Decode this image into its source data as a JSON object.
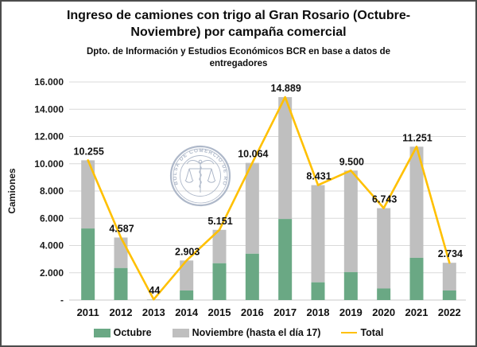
{
  "title": {
    "line1": "Ingreso de camiones con trigo al Gran Rosario (Octubre-",
    "line2": "Noviembre) por campaña comercial"
  },
  "subtitle": {
    "line1": "Dpto. de Información y Estudios Económicos BCR en base a datos de",
    "line2": "entregadores"
  },
  "watermark": {
    "text": "BOLSA DE COMERCIO DE ROSARIO",
    "color": "#a6b1c4"
  },
  "chart_data": {
    "type": "bar",
    "subtype": "stacked-bars-with-total-line",
    "title": "Ingreso de camiones con trigo al Gran Rosario (Octubre-Noviembre) por campaña comercial",
    "subtitle": "Dpto. de Información y Estudios Económicos BCR en base a datos de entregadores",
    "ylabel": "Camiones",
    "xlabel": "",
    "categories": [
      "2011",
      "2012",
      "2013",
      "2014",
      "2015",
      "2016",
      "2017",
      "2018",
      "2019",
      "2020",
      "2021",
      "2022"
    ],
    "series": [
      {
        "name": "Octubre",
        "color": "#6aa884",
        "values": [
          5250,
          2350,
          10,
          700,
          2700,
          3400,
          5950,
          1300,
          2050,
          850,
          3100,
          700
        ]
      },
      {
        "name": "Noviembre (hasta el día 17)",
        "color": "#bfbfbf",
        "values": [
          5005,
          2237,
          34,
          2203,
          2451,
          6664,
          8939,
          7131,
          7450,
          5893,
          8151,
          2034
        ]
      }
    ],
    "line": {
      "name": "Total",
      "color": "#ffc000",
      "values": [
        10255,
        4587,
        44,
        2903,
        5151,
        10064,
        14889,
        8431,
        9500,
        6743,
        11251,
        2734
      ]
    },
    "total_labels": [
      "10.255",
      "4.587",
      "44",
      "2.903",
      "5.151",
      "10.064",
      "14.889",
      "8.431",
      "9.500",
      "6.743",
      "11.251",
      "2.734"
    ],
    "ylim": [
      0,
      16000
    ],
    "ytick_step": 2000,
    "ytick_labels": [
      "-",
      "2.000",
      "4.000",
      "6.000",
      "8.000",
      "10.000",
      "12.000",
      "14.000",
      "16.000"
    ],
    "grid": "horizontal",
    "legend_position": "bottom",
    "gridline_color": "#d9d9d9",
    "axis_text_color": "#1a1a1a",
    "label_text_color": "#111111"
  }
}
